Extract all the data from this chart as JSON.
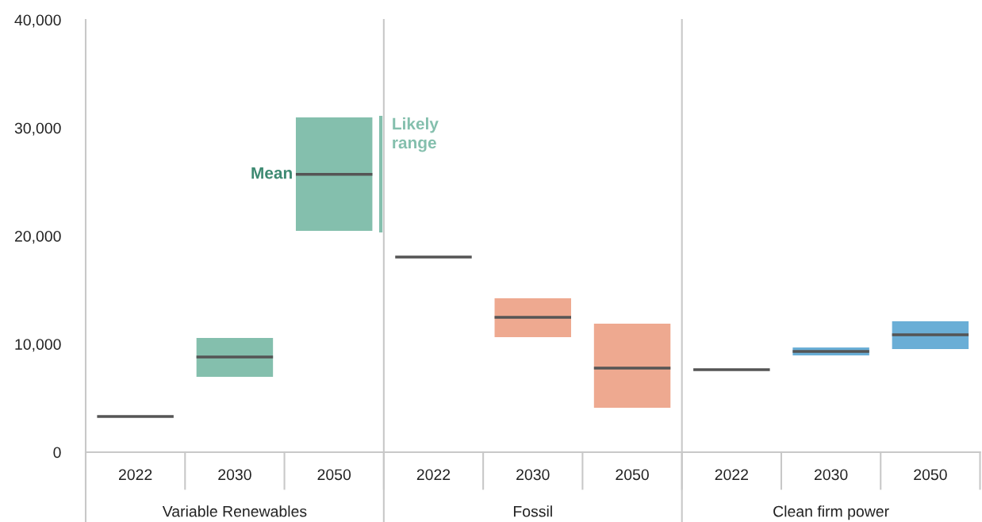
{
  "chart_data": {
    "type": "bar",
    "categories": [
      "2022",
      "2030",
      "2050",
      "2022",
      "2030",
      "2050",
      "2022",
      "2030",
      "2050"
    ],
    "series": [
      {
        "type": "bar",
        "colors": [
          "#84bfad",
          "#84bfad",
          "#84bfad",
          "#eea990",
          "#eea990",
          "#eea990",
          "#6aaed6",
          "#6aaed6",
          "#6aaed6"
        ],
        "base": [
          null,
          6970,
          20480,
          null,
          10640,
          4110,
          null,
          8950,
          9540
        ],
        "values": [
          null,
          3600,
          10490,
          null,
          3600,
          7780,
          null,
          740,
          2570
        ]
      },
      {
        "type": "bar",
        "color": "#555555",
        "base": [
          3300,
          8800,
          25700,
          18050,
          12480,
          7780,
          7630,
          9320,
          10860
        ],
        "values": [
          0,
          0,
          0,
          0,
          0,
          0,
          0,
          0,
          0
        ]
      }
    ],
    "ylim": [
      0,
      40000
    ],
    "yticks": [
      0,
      {
        "value": 10000,
        "label": "10,000"
      },
      {
        "value": 20000,
        "label": "20,000"
      },
      {
        "value": 30000,
        "label": "30,000"
      },
      {
        "value": 40000,
        "label": "40,000"
      }
    ],
    "annotations": [
      "Mean",
      "Likely range",
      "Variable Renewables",
      "Fossil",
      "Clean firm power"
    ],
    "grid": false,
    "legend": false
  }
}
